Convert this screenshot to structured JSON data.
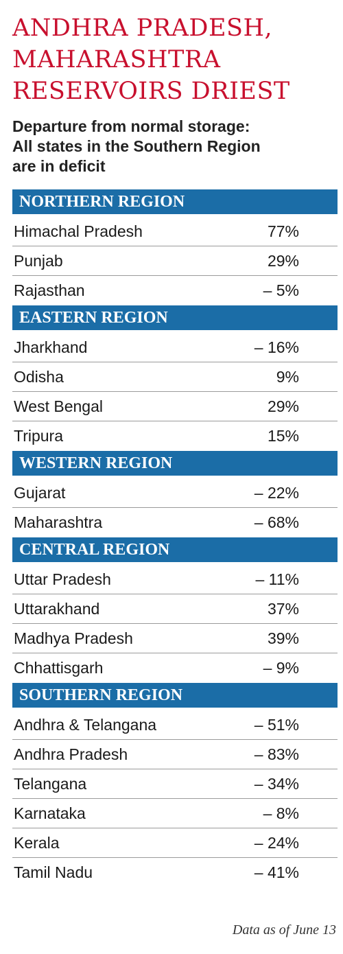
{
  "chart_data": {
    "type": "table",
    "title": "ANDHRA PRADESH, MAHARASHTRA RESERVOIRS DRIEST",
    "title_lines": [
      "ANDHRA PRADESH,",
      "MAHARASHTRA",
      "RESERVOIRS DRIEST"
    ],
    "subtitle_lines": [
      "Departure from normal storage:",
      "All states in the Southern Region",
      "are in deficit"
    ],
    "value_unit": "%",
    "regions": [
      {
        "name": "NORTHERN REGION",
        "rows": [
          {
            "state": "Himachal Pradesh",
            "label": "77%",
            "value": 77
          },
          {
            "state": "Punjab",
            "label": "29%",
            "value": 29
          },
          {
            "state": "Rajasthan",
            "label": "– 5%",
            "value": -5
          }
        ]
      },
      {
        "name": "EASTERN REGION",
        "rows": [
          {
            "state": "Jharkhand",
            "label": "– 16%",
            "value": -16
          },
          {
            "state": "Odisha",
            "label": "9%",
            "value": 9
          },
          {
            "state": "West Bengal",
            "label": "29%",
            "value": 29
          },
          {
            "state": "Tripura",
            "label": "15%",
            "value": 15
          }
        ]
      },
      {
        "name": "WESTERN REGION",
        "rows": [
          {
            "state": "Gujarat",
            "label": "– 22%",
            "value": -22
          },
          {
            "state": "Maharashtra",
            "label": "– 68%",
            "value": -68
          }
        ]
      },
      {
        "name": "CENTRAL REGION",
        "rows": [
          {
            "state": "Uttar Pradesh",
            "label": "– 11%",
            "value": -11
          },
          {
            "state": "Uttarakhand",
            "label": "37%",
            "value": 37
          },
          {
            "state": "Madhya Pradesh",
            "label": "39%",
            "value": 39
          },
          {
            "state": "Chhattisgarh",
            "label": "– 9%",
            "value": -9
          }
        ]
      },
      {
        "name": "SOUTHERN REGION",
        "rows": [
          {
            "state": "Andhra & Telangana",
            "label": "– 51%",
            "value": -51
          },
          {
            "state": "Andhra Pradesh",
            "label": "– 83%",
            "value": -83
          },
          {
            "state": "Telangana",
            "label": "– 34%",
            "value": -34
          },
          {
            "state": "Karnataka",
            "label": "– 8%",
            "value": -8
          },
          {
            "state": "Kerala",
            "label": "– 24%",
            "value": -24
          },
          {
            "state": "Tamil Nadu",
            "label": "– 41%",
            "value": -41
          }
        ]
      }
    ],
    "source_note": "Data as of June 13"
  },
  "colors": {
    "title": "#c8102e",
    "region_header_background": "#1b6da7",
    "region_header_text": "#ffffff",
    "row_divider": "#9a9a9a"
  }
}
